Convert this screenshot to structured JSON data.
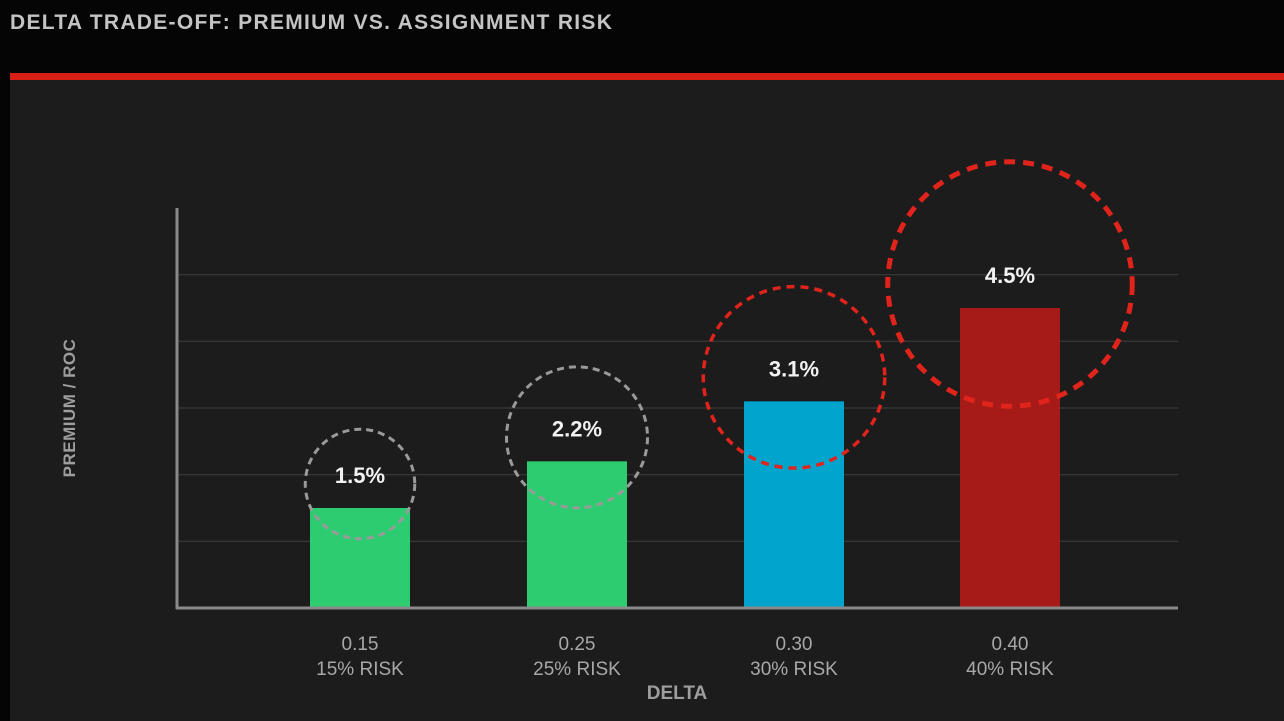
{
  "page": {
    "title": "DELTA TRADE-OFF: PREMIUM VS. ASSIGNMENT RISK",
    "accent_color": "#d81f16"
  },
  "chart_data": {
    "type": "bar",
    "title": "",
    "xlabel": "DELTA",
    "ylabel": "PREMIUM / ROC",
    "categories": [
      "0.15",
      "0.25",
      "0.30",
      "0.40"
    ],
    "category_sublabels": [
      "15% RISK",
      "25% RISK",
      "30% RISK",
      "40% RISK"
    ],
    "values": [
      1.5,
      2.2,
      3.1,
      4.5
    ],
    "value_labels": [
      "1.5%",
      "2.2%",
      "3.1%",
      "4.5%"
    ],
    "bar_colors": [
      "#2ecc71",
      "#2ecc71",
      "#00a4cc",
      "#a61b17"
    ],
    "highlight_styles": [
      "neutral",
      "neutral",
      "alert",
      "alert"
    ],
    "highlight_colors": {
      "neutral": "#9a9a9a",
      "alert": "#e0241b"
    },
    "ylim": [
      0,
      6
    ],
    "y_gridlines": [
      1,
      2,
      3,
      4,
      5
    ],
    "grid": true,
    "legend": "none"
  }
}
